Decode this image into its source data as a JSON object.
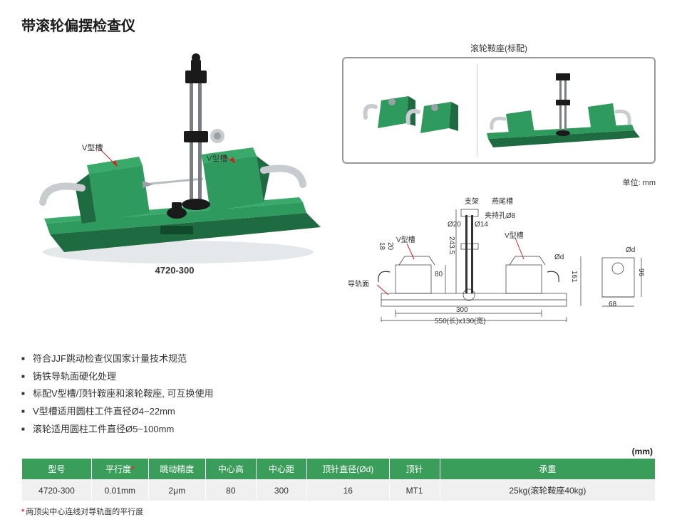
{
  "title": "带滚轮偏摆检查仪",
  "main_image": {
    "v_label_1": "V型槽",
    "v_label_2": "V型槽",
    "model": "4720-300",
    "colors": {
      "body_green": "#2e9a5e",
      "body_dark_green": "#1f6b41",
      "metal_gray": "#b8bcc0",
      "metal_dark": "#6a6e72",
      "black": "#1a1a1a",
      "shadow": "#d8dee2"
    }
  },
  "inset": {
    "title": "滚轮鞍座(标配)",
    "colors": {
      "border": "#999999"
    }
  },
  "unit": "单位: mm",
  "diagram": {
    "labels": {
      "zhijia": "支架",
      "yanweicao": "燕尾槽",
      "jiachikong": "夹持孔Ø8",
      "d20": "Ø20",
      "d14": "Ø14",
      "vxingcao": "V型槽",
      "vxingcao2": "V型槽",
      "h18": "18",
      "h20": "20",
      "h2435": "243.5",
      "h80": "80",
      "daoguimian": "导轨面",
      "w300": "300",
      "w550": "550(长)x130(宽)",
      "od": "Ød",
      "od2": "Ød",
      "h161": "161",
      "h96": "96",
      "w68": "68"
    }
  },
  "bullets": [
    "符合JJF跳动检查仪国家计量技术规范",
    "铸铁导轨面硬化处理",
    "标配V型槽/顶针鞍座和滚轮鞍座, 可互换使用",
    "V型槽适用圆柱工件直径Ø4~22mm",
    "滚轮适用圆柱工件直径Ø5~100mm"
  ],
  "table_unit": "(mm)",
  "table": {
    "columns": [
      "型号",
      "平行度",
      "跳动精度",
      "中心高",
      "中心距",
      "顶针直径(Ød)",
      "顶针",
      "承重"
    ],
    "col_widths": [
      "11%",
      "9%",
      "9%",
      "8%",
      "8%",
      "13%",
      "8%",
      "34%"
    ],
    "star_col": 1,
    "header_bg": "#3a9d5a",
    "header_fg": "#ffffff",
    "row_bg": "#f0f0f0",
    "rows": [
      [
        "4720-300",
        "0.01mm",
        "2μm",
        "80",
        "300",
        "16",
        "MT1",
        "25kg(滚轮鞍座40kg)"
      ]
    ]
  },
  "footnote": "两顶尖中心连线对导轨面的平行度"
}
